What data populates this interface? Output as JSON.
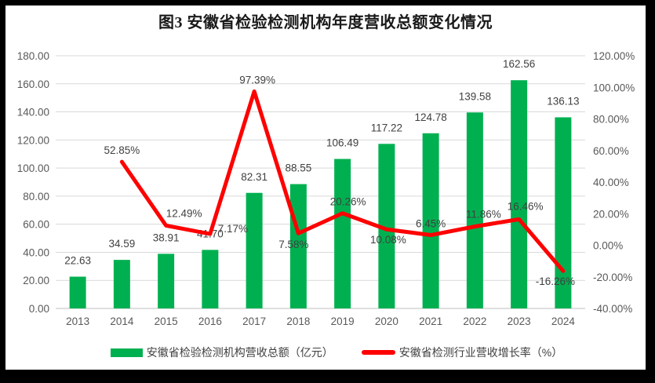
{
  "title": "图3 安徽省检验检测机构年度营收总额变化情况",
  "legend": {
    "items": [
      {
        "label": "安徽省检验检测机构营收总额（亿元）",
        "type": "bar",
        "color": "#00B050"
      },
      {
        "label": "安徽省检测行业营收增长率（%）",
        "type": "line",
        "color": "#FF0000"
      }
    ]
  },
  "colors": {
    "bar": "#00B050",
    "line": "#FF0000",
    "gridline": "#D9D9D9",
    "axis_line": "#BFBFBF",
    "tick_text": "#595959",
    "data_label_text": "#404040",
    "background": "#FFFFFF",
    "frame": "#000000"
  },
  "chart_data": {
    "type": "bar",
    "subtype": "combo-bar-line",
    "title": "图3 安徽省检验检测机构年度营收总额变化情况",
    "categories": [
      "2013",
      "2014",
      "2015",
      "2016",
      "2017",
      "2018",
      "2019",
      "2020",
      "2021",
      "2022",
      "2023",
      "2024"
    ],
    "series": [
      {
        "name": "安徽省检验检测机构营收总额（亿元）",
        "type": "bar",
        "axis": "left",
        "color": "#00B050",
        "values": [
          22.63,
          34.59,
          38.91,
          41.7,
          82.31,
          88.55,
          106.49,
          117.22,
          124.78,
          139.58,
          162.56,
          136.13
        ],
        "labels": [
          "22.63",
          "34.59",
          "38.91",
          "41.70",
          "82.31",
          "88.55",
          "106.49",
          "117.22",
          "124.78",
          "139.58",
          "162.56",
          "136.13"
        ]
      },
      {
        "name": "安徽省检测行业营收增长率（%）",
        "type": "line",
        "axis": "right",
        "color": "#FF0000",
        "values": [
          null,
          52.85,
          12.49,
          7.17,
          97.39,
          7.58,
          20.26,
          10.08,
          6.45,
          11.86,
          16.46,
          -16.26
        ],
        "labels": [
          null,
          "52.85%",
          "12.49%",
          "7.17%",
          "97.39%",
          "7.58%",
          "20.26%",
          "10.08%",
          "6.45%",
          "11.86%",
          "16.46%",
          "-16.26%"
        ],
        "label_offsets": [
          null,
          [
            0,
            -15
          ],
          [
            23,
            -16
          ],
          [
            29,
            -7
          ],
          [
            4,
            -15
          ],
          [
            -6,
            14
          ],
          [
            7,
            -15
          ],
          [
            2,
            13
          ],
          [
            0,
            -15
          ],
          [
            11,
            -16
          ],
          [
            8,
            -17
          ],
          [
            -10,
            13
          ]
        ]
      }
    ],
    "left_axis": {
      "min": 0,
      "max": 180,
      "step": 20,
      "tick_labels": [
        "180.00",
        "160.00",
        "140.00",
        "120.00",
        "100.00",
        "80.00",
        "60.00",
        "40.00",
        "20.00",
        "0.00"
      ]
    },
    "right_axis": {
      "min": -40,
      "max": 120,
      "step": 20,
      "tick_labels": [
        "120.00%",
        "100.00%",
        "80.00%",
        "60.00%",
        "40.00%",
        "20.00%",
        "0.00%",
        "-20.00%",
        "-40.00%"
      ]
    },
    "grid": true,
    "legend_position": "bottom",
    "ylim_left": [
      0,
      180
    ],
    "ylim_right": [
      -40,
      120
    ]
  }
}
